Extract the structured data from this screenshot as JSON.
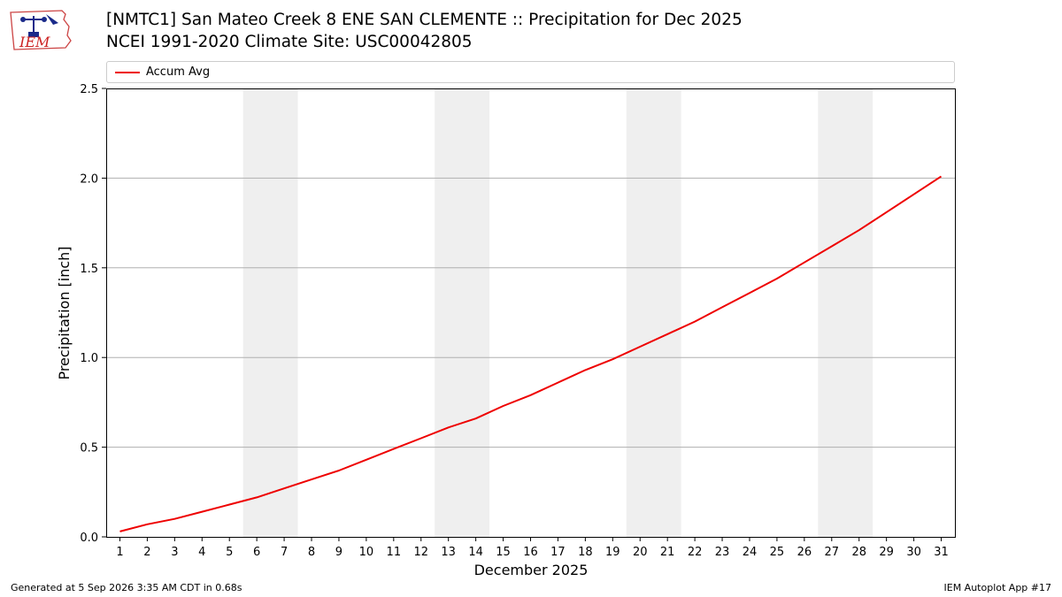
{
  "header": {
    "title_line1": "[NMTC1] San Mateo Creek 8 ENE SAN CLEMENTE :: Precipitation for Dec 2025",
    "title_line2": "NCEI 1991-2020 Climate Site: USC00042805",
    "logo_text": "IEM"
  },
  "footer": {
    "generated": "Generated at 5 Sep 2026 3:35 AM CDT in 0.68s",
    "app": "IEM Autoplot App #17"
  },
  "colors": {
    "series_line": "#ee0000",
    "weekend_band": "#efefef",
    "grid": "#b0b0b0"
  },
  "chart_data": {
    "type": "line",
    "title": "[NMTC1] San Mateo Creek 8 ENE SAN CLEMENTE :: Precipitation for Dec 2025",
    "subtitle": "NCEI 1991-2020 Climate Site: USC00042805",
    "xlabel": "December 2025",
    "ylabel": "Precipitation [inch]",
    "xlim": [
      0.5,
      31.5
    ],
    "ylim": [
      0,
      2.5
    ],
    "x_ticks": [
      1,
      2,
      3,
      4,
      5,
      6,
      7,
      8,
      9,
      10,
      11,
      12,
      13,
      14,
      15,
      16,
      17,
      18,
      19,
      20,
      21,
      22,
      23,
      24,
      25,
      26,
      27,
      28,
      29,
      30,
      31
    ],
    "y_ticks": [
      "0.0",
      "0.5",
      "1.0",
      "1.5",
      "2.0",
      "2.5"
    ],
    "y_tick_values": [
      0,
      0.5,
      1.0,
      1.5,
      2.0,
      2.5
    ],
    "grid": "horizontal",
    "legend_placement": "top",
    "shaded_weekends": [
      [
        6,
        7
      ],
      [
        13,
        14
      ],
      [
        20,
        21
      ],
      [
        27,
        28
      ]
    ],
    "series": [
      {
        "name": "Accum Avg",
        "x": [
          1,
          2,
          3,
          4,
          5,
          6,
          7,
          8,
          9,
          10,
          11,
          12,
          13,
          14,
          15,
          16,
          17,
          18,
          19,
          20,
          21,
          22,
          23,
          24,
          25,
          26,
          27,
          28,
          29,
          30,
          31
        ],
        "values": [
          0.03,
          0.07,
          0.1,
          0.14,
          0.18,
          0.22,
          0.27,
          0.32,
          0.37,
          0.43,
          0.49,
          0.55,
          0.61,
          0.66,
          0.73,
          0.79,
          0.86,
          0.93,
          0.99,
          1.06,
          1.13,
          1.2,
          1.28,
          1.36,
          1.44,
          1.53,
          1.62,
          1.71,
          1.81,
          1.91,
          2.01
        ]
      }
    ]
  }
}
